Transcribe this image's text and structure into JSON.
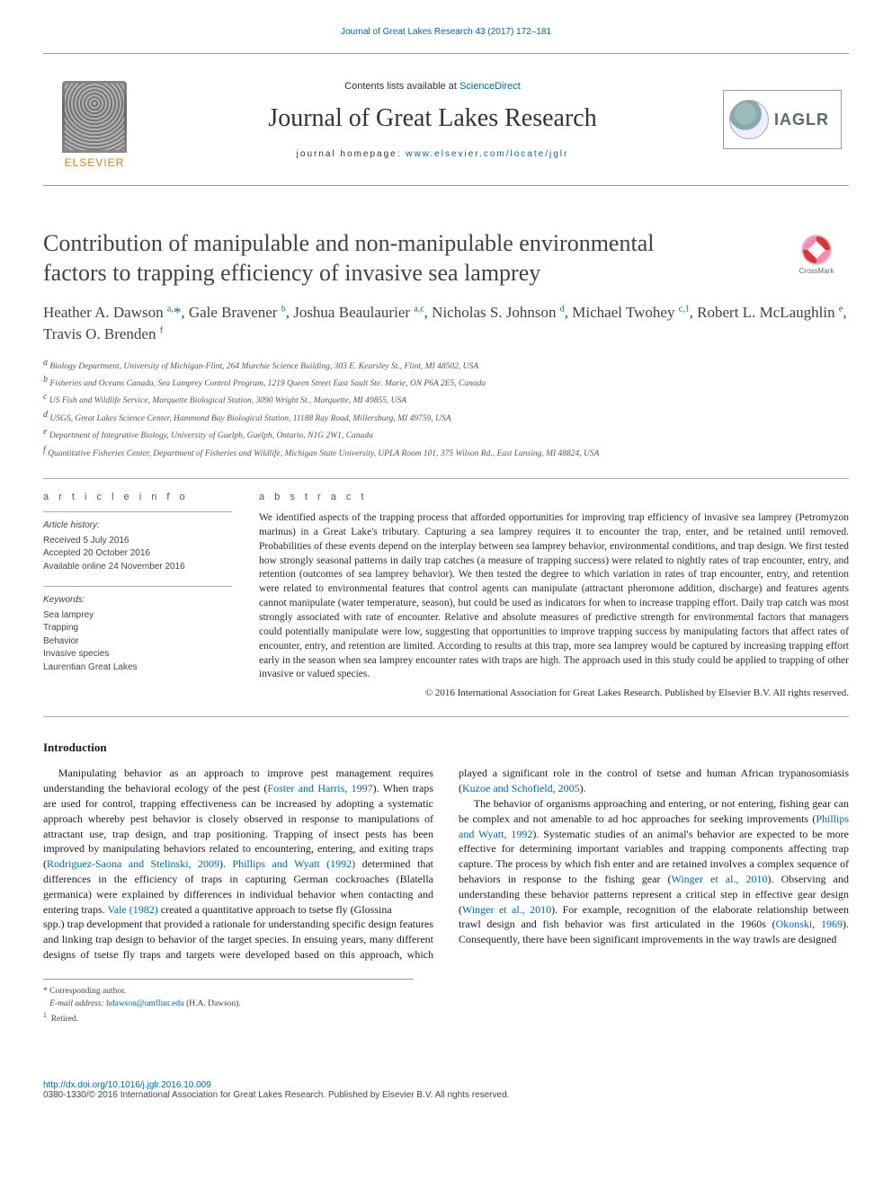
{
  "journal_link_top": "Journal of Great Lakes Research 43 (2017) 172–181",
  "header": {
    "contents_prefix": "Contents lists available at ",
    "contents_link": "ScienceDirect",
    "journal_title": "Journal of Great Lakes Research",
    "homepage_prefix": "journal homepage: ",
    "homepage_url": "www.elsevier.com/locate/jglr",
    "elsevier_word": "ELSEVIER",
    "iaglr_text": "IAGLR",
    "crossmark_label": "CrossMark"
  },
  "article": {
    "title_l1": "Contribution of manipulable and non-manipulable environmental",
    "title_l2": "factors to trapping efficiency of invasive sea lamprey",
    "authors_html": "Heather A. Dawson <sup>a,</sup><span class='ast'>*</span>, Gale Bravener <sup>b</sup>, Joshua Beaulaurier <sup>a,c</sup>, Nicholas S. Johnson <sup>d</sup>, Michael Twohey <sup>c,1</sup>, Robert L. McLaughlin <sup>e</sup>, Travis O. Brenden <sup>f</sup>",
    "affiliations": [
      "a  Biology Department, University of Michigan-Flint, 264 Murchie Science Building, 303 E. Kearsley St., Flint, MI 48502, USA",
      "b  Fisheries and Oceans Canada, Sea Lamprey Control Program, 1219 Queen Street East Sault Ste. Marie, ON P6A 2E5, Canada",
      "c  US Fish and Wildlife Service, Marquette Biological Station, 3090 Wright St., Marquette, MI 49855, USA",
      "d  USGS, Great Lakes Science Center, Hammond Bay Biological Station, 11188 Ray Road, Millersburg, MI 49759, USA",
      "e  Department of Integrative Biology, University of Guelph, Guelph, Ontario, N1G 2W1, Canada",
      "f  Quantitative Fisheries Center, Department of Fisheries and Wildlife, Michigan State University, UPLA Room 101, 375 Wilson Rd., East Lansing, MI 48824, USA"
    ]
  },
  "info": {
    "section_label": "a r t i c l e   i n f o",
    "history_label": "Article history:",
    "received": "Received 5 July 2016",
    "accepted": "Accepted 20 October 2016",
    "online": "Available online 24 November 2016",
    "keywords_label": "Keywords:",
    "keywords": [
      "Sea lamprey",
      "Trapping",
      "Behavior",
      "Invasive species",
      "Laurentian Great Lakes"
    ]
  },
  "abstract": {
    "section_label": "a b s t r a c t",
    "text": "We identified aspects of the trapping process that afforded opportunities for improving trap efficiency of invasive sea lamprey (Petromyzon marinus) in a Great Lake's tributary. Capturing a sea lamprey requires it to encounter the trap, enter, and be retained until removed. Probabilities of these events depend on the interplay between sea lamprey behavior, environmental conditions, and trap design. We first tested how strongly seasonal patterns in daily trap catches (a measure of trapping success) were related to nightly rates of trap encounter, entry, and retention (outcomes of sea lamprey behavior). We then tested the degree to which variation in rates of trap encounter, entry, and retention were related to environmental features that control agents can manipulate (attractant pheromone addition, discharge) and features agents cannot manipulate (water temperature, season), but could be used as indicators for when to increase trapping effort. Daily trap catch was most strongly associated with rate of encounter. Relative and absolute measures of predictive strength for environmental factors that managers could potentially manipulate were low, suggesting that opportunities to improve trapping success by manipulating factors that affect rates of encounter, entry, and retention are limited. According to results at this trap, more sea lamprey would be captured by increasing trapping effort early in the season when sea lamprey encounter rates with traps are high. The approach used in this study could be applied to trapping of other invasive or valued species.",
    "copyright": "© 2016 International Association for Great Lakes Research. Published by Elsevier B.V. All rights reserved."
  },
  "intro": {
    "heading": "Introduction",
    "p1_pre": "Manipulating behavior as an approach to improve pest management requires understanding the behavioral ecology of the pest (",
    "p1_ref1": "Foster and Harris, 1997",
    "p1_mid1": "). When traps are used for control, trapping effectiveness can be increased by adopting a systematic approach whereby pest behavior is closely observed in response to manipulations of attractant use, trap design, and trap positioning. Trapping of insect pests has been improved by manipulating behaviors related to encountering, entering, and exiting traps (",
    "p1_ref2": "Rodriguez-Saona and Stelinski, 2009",
    "p1_mid2": "). ",
    "p1_ref3": "Phillips and Wyatt (1992)",
    "p1_mid3": " determined that differences in the efficiency of traps in capturing German cockroaches (Blatella germanica) were explained by differences in individual behavior when contacting and entering traps. ",
    "p1_ref4": "Vale (1982)",
    "p1_post": " created a quantitative approach to tsetse fly (Glossina",
    "p2_pre": "spp.) trap development that provided a rationale for understanding specific design features and linking trap design to behavior of the target species. In ensuing years, many different designs of tsetse fly traps and targets were developed based on this approach, which played a significant role in the control of tsetse and human African trypanosomiasis (",
    "p2_ref1": "Kuzoe and Schofield, 2005",
    "p2_post": ").",
    "p3_pre": "The behavior of organisms approaching and entering, or not entering, fishing gear can be complex and not amenable to ad hoc approaches for seeking improvements (",
    "p3_ref1": "Phillips and Wyatt, 1992",
    "p3_mid1": "). Systematic studies of an animal's behavior are expected to be more effective for determining important variables and trapping components affecting trap capture. The process by which fish enter and are retained involves a complex sequence of behaviors in response to the fishing gear (",
    "p3_ref2": "Winger et al., 2010",
    "p3_mid2": "). Observing and understanding these behavior patterns represent a critical step in effective gear design (",
    "p3_ref3": "Winger et al., 2010",
    "p3_mid3": "). For example, recognition of the elaborate relationship between trawl design and fish behavior was first articulated in the 1960s (",
    "p3_ref4": "Okonski, 1969",
    "p3_post": "). Consequently, there have been significant improvements in the way trawls are designed"
  },
  "footnotes": {
    "corr": "*  Corresponding author.",
    "email_label": "E-mail address: ",
    "email": "hdawson@umflint.edu",
    "email_paren": " (H.A. Dawson).",
    "retired": "1  Retired."
  },
  "footer": {
    "doi": "http://dx.doi.org/10.1016/j.jglr.2016.10.009",
    "issn_line": "0380-1330/© 2016 International Association for Great Lakes Research. Published by Elsevier B.V. All rights reserved."
  },
  "colors": {
    "link": "#0066aa",
    "text": "#2a2a2a",
    "orange": "#e67817"
  }
}
